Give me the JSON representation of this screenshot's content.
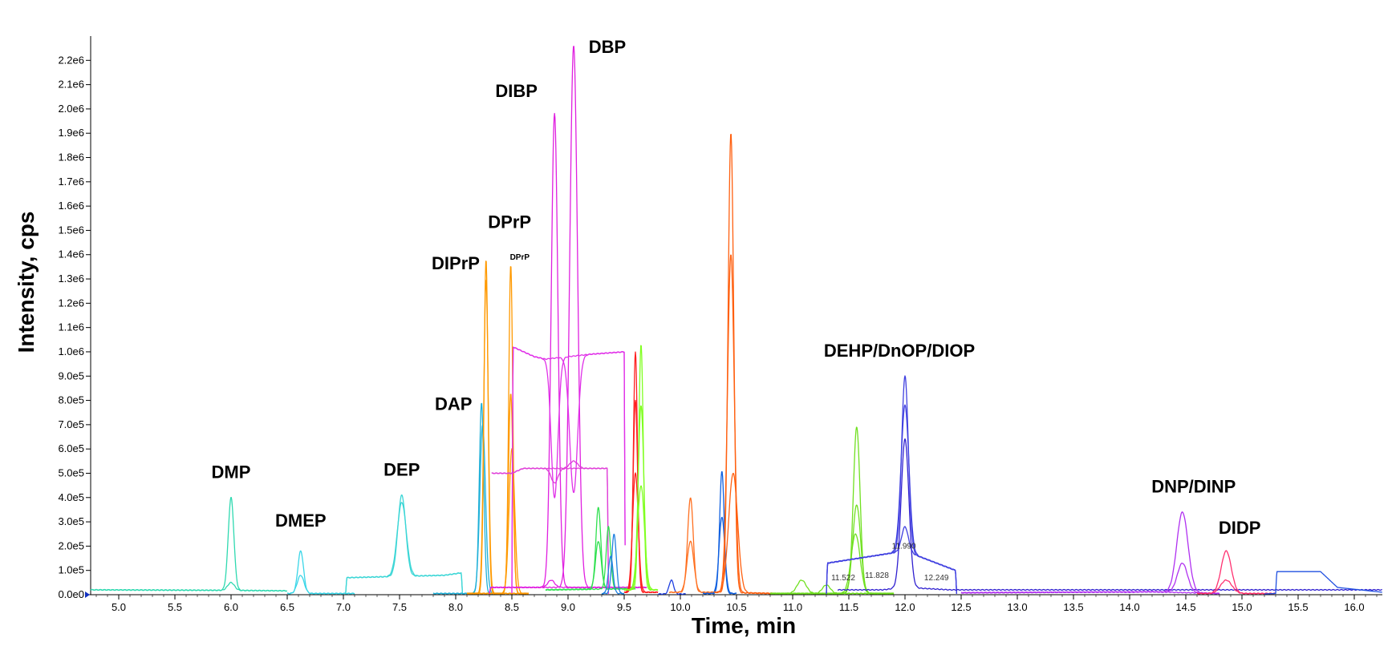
{
  "chart_data": {
    "type": "line",
    "xlabel": "Time, min",
    "ylabel": "Intensity, cps",
    "xlim": [
      4.75,
      16.25
    ],
    "ylim": [
      0,
      2300000
    ],
    "x_ticks": [
      "5.0",
      "5.5",
      "6.0",
      "6.5",
      "7.0",
      "7.5",
      "8.0",
      "8.5",
      "9.0",
      "9.5",
      "10.0",
      "10.5",
      "11.0",
      "11.5",
      "12.0",
      "12.5",
      "13.0",
      "13.5",
      "14.0",
      "14.5",
      "15.0",
      "15.5",
      "16.0"
    ],
    "y_ticks": [
      "0.0e0",
      "1.0e5",
      "2.0e5",
      "3.0e5",
      "4.0e5",
      "5.0e5",
      "6.0e5",
      "7.0e5",
      "8.0e5",
      "9.0e5",
      "1.0e6",
      "1.1e6",
      "1.2e6",
      "1.3e6",
      "1.4e6",
      "1.5e6",
      "1.6e6",
      "1.7e6",
      "1.8e6",
      "1.9e6",
      "2.0e6",
      "2.1e6",
      "2.2e6"
    ],
    "annotations": [
      {
        "text": "DMP",
        "x": 6.0,
        "y": 480000
      },
      {
        "text": "DMEP",
        "x": 6.62,
        "y": 280000
      },
      {
        "text": "DEP",
        "x": 7.52,
        "y": 490000
      },
      {
        "text": "DAP",
        "x": 7.98,
        "y": 760000
      },
      {
        "text": "DIPrP",
        "x": 8.0,
        "y": 1340000
      },
      {
        "text": "DPrP",
        "x": 8.48,
        "y": 1510000
      },
      {
        "text": "DPrP",
        "x": 8.57,
        "y": 1380000,
        "small": true
      },
      {
        "text": "DIBP",
        "x": 8.54,
        "y": 2050000
      },
      {
        "text": "DBP",
        "x": 9.35,
        "y": 2230000
      },
      {
        "text": "DEHP/DnOP/DIOP",
        "x": 11.95,
        "y": 980000
      },
      {
        "text": "DNP/DINP",
        "x": 14.57,
        "y": 420000
      },
      {
        "text": "DIDP",
        "x": 14.98,
        "y": 250000
      }
    ],
    "rt_labels": [
      {
        "text": "11.522",
        "x": 11.45,
        "y": 60000
      },
      {
        "text": "11.828",
        "x": 11.75,
        "y": 70000
      },
      {
        "text": "11.990",
        "x": 11.99,
        "y": 190000
      },
      {
        "text": "12.249",
        "x": 12.28,
        "y": 60000
      }
    ],
    "series": [
      {
        "color": "#2fd9b0",
        "baseline": [
          [
            4.75,
            20000
          ],
          [
            5.95,
            18000
          ],
          [
            6.5,
            16000
          ]
        ],
        "peaks": [
          [
            6.0,
            400000,
            0.025
          ],
          [
            6.0,
            50000,
            0.03
          ]
        ]
      },
      {
        "color": "#3ad6e8",
        "baseline": [
          [
            6.5,
            5000
          ],
          [
            7.1,
            5000
          ]
        ],
        "peaks": [
          [
            6.62,
            180000,
            0.025
          ],
          [
            6.62,
            80000,
            0.03
          ]
        ]
      },
      {
        "color": "#3cd6d6",
        "baseline": [
          [
            7.02,
            5000
          ],
          [
            7.03,
            70000
          ],
          [
            7.9,
            80000
          ],
          [
            8.05,
            90000
          ],
          [
            8.06,
            5000
          ]
        ],
        "peaks": [
          [
            7.52,
            410000,
            0.035
          ],
          [
            7.52,
            380000,
            0.04
          ]
        ]
      },
      {
        "color": "#1fb0d8",
        "baseline": [
          [
            7.8,
            5000
          ],
          [
            8.4,
            5000
          ]
        ],
        "peaks": [
          [
            8.23,
            790000,
            0.02
          ],
          [
            8.24,
            700000,
            0.025
          ]
        ]
      },
      {
        "color": "#ff9900",
        "baseline": [
          [
            8.1,
            5000
          ],
          [
            8.65,
            5000
          ]
        ],
        "peaks": [
          [
            8.27,
            1380000,
            0.018
          ],
          [
            8.27,
            1300000,
            0.02
          ],
          [
            8.49,
            1360000,
            0.018
          ],
          [
            8.49,
            830000,
            0.02
          ],
          [
            8.5,
            600000,
            0.025
          ]
        ]
      },
      {
        "color": "#e020e0",
        "baseline": [
          [
            8.3,
            5000
          ],
          [
            8.31,
            30000
          ],
          [
            9.7,
            30000
          ]
        ],
        "peaks": [
          [
            8.88,
            1980000,
            0.03
          ],
          [
            9.05,
            2260000,
            0.035
          ],
          [
            8.85,
            60000,
            0.03
          ]
        ]
      },
      {
        "color": "#e040d8",
        "baseline": [
          [
            8.32,
            500000
          ],
          [
            8.5,
            500000
          ],
          [
            8.6,
            520000
          ],
          [
            8.8,
            520000
          ],
          [
            9.1,
            520000
          ],
          [
            9.35,
            520000
          ],
          [
            9.36,
            5000
          ]
        ],
        "peaks": [
          [
            8.88,
            460000,
            0.03
          ],
          [
            9.05,
            550000,
            0.035
          ]
        ]
      },
      {
        "color": "#e030e8",
        "baseline": [
          [
            8.5,
            5000
          ],
          [
            8.51,
            1020000
          ],
          [
            8.7,
            980000
          ],
          [
            8.8,
            970000
          ],
          [
            9.2,
            990000
          ],
          [
            9.5,
            1000000
          ],
          [
            9.51,
            5000
          ]
        ],
        "peaks": [
          [
            8.88,
            400000,
            0.03
          ],
          [
            9.05,
            420000,
            0.035
          ]
        ]
      },
      {
        "color": "#30e050",
        "baseline": [
          [
            8.8,
            20000
          ],
          [
            9.6,
            25000
          ]
        ],
        "peaks": [
          [
            9.27,
            360000,
            0.022
          ],
          [
            9.27,
            220000,
            0.025
          ],
          [
            9.36,
            280000,
            0.02
          ]
        ]
      },
      {
        "color": "#2080e0",
        "baseline": [
          [
            9.3,
            5000
          ],
          [
            9.5,
            5000
          ]
        ],
        "peaks": [
          [
            9.41,
            250000,
            0.02
          ],
          [
            9.38,
            160000,
            0.02
          ]
        ]
      },
      {
        "color": "#ff2020",
        "baseline": [
          [
            9.5,
            10000
          ],
          [
            9.8,
            10000
          ]
        ],
        "peaks": [
          [
            9.6,
            1000000,
            0.018
          ],
          [
            9.6,
            800000,
            0.02
          ],
          [
            9.6,
            500000,
            0.025
          ]
        ]
      },
      {
        "color": "#80ff20",
        "baseline": [
          [
            9.5,
            20000
          ],
          [
            9.8,
            20000
          ]
        ],
        "peaks": [
          [
            9.65,
            1030000,
            0.02
          ],
          [
            9.65,
            780000,
            0.025
          ],
          [
            9.65,
            450000,
            0.03
          ]
        ]
      },
      {
        "color": "#2040e0",
        "baseline": [
          [
            9.8,
            3000
          ],
          [
            10.05,
            3000
          ]
        ],
        "peaks": [
          [
            9.92,
            60000,
            0.02
          ]
        ]
      },
      {
        "color": "#ff7020",
        "baseline": [
          [
            9.9,
            10000
          ],
          [
            10.3,
            10000
          ]
        ],
        "peaks": [
          [
            10.09,
            400000,
            0.025
          ],
          [
            10.09,
            220000,
            0.03
          ]
        ]
      },
      {
        "color": "#1060e0",
        "baseline": [
          [
            10.2,
            5000
          ],
          [
            10.5,
            5000
          ]
        ],
        "peaks": [
          [
            10.37,
            510000,
            0.02
          ],
          [
            10.37,
            320000,
            0.025
          ]
        ]
      },
      {
        "color": "#ff6010",
        "baseline": [
          [
            10.3,
            10000
          ],
          [
            10.85,
            5000
          ]
        ],
        "peaks": [
          [
            10.45,
            1900000,
            0.025
          ],
          [
            10.45,
            1400000,
            0.03
          ],
          [
            10.47,
            500000,
            0.04
          ]
        ]
      },
      {
        "color": "#70e020",
        "baseline": [
          [
            10.8,
            5000
          ],
          [
            11.9,
            5000
          ]
        ],
        "peaks": [
          [
            11.08,
            60000,
            0.04
          ],
          [
            11.3,
            40000,
            0.035
          ],
          [
            11.57,
            690000,
            0.03
          ],
          [
            11.57,
            370000,
            0.035
          ],
          [
            11.56,
            250000,
            0.04
          ]
        ]
      },
      {
        "color": "#4040e0",
        "baseline": [
          [
            11.3,
            5000
          ],
          [
            11.31,
            130000
          ],
          [
            12.0,
            180000
          ],
          [
            12.45,
            100000
          ],
          [
            12.46,
            5000
          ]
        ],
        "peaks": [
          [
            12.0,
            900000,
            0.03
          ],
          [
            12.0,
            780000,
            0.035
          ],
          [
            12.0,
            280000,
            0.03
          ]
        ]
      },
      {
        "color": "#3020d0",
        "baseline": [
          [
            11.4,
            20000
          ],
          [
            11.8,
            20000
          ],
          [
            12.0,
            30000
          ],
          [
            12.4,
            20000
          ],
          [
            16.25,
            20000
          ]
        ],
        "peaks": [
          [
            12.0,
            640000,
            0.035
          ]
        ]
      },
      {
        "color": "#b030f0",
        "baseline": [
          [
            12.5,
            8000
          ],
          [
            14.2,
            12000
          ],
          [
            14.8,
            5000
          ]
        ],
        "peaks": [
          [
            14.47,
            340000,
            0.05
          ],
          [
            14.47,
            130000,
            0.045
          ],
          [
            14.0,
            10000,
            0.05
          ]
        ]
      },
      {
        "color": "#ff3070",
        "baseline": [
          [
            14.6,
            5000
          ],
          [
            15.3,
            5000
          ]
        ],
        "peaks": [
          [
            14.86,
            180000,
            0.045
          ],
          [
            14.86,
            60000,
            0.05
          ]
        ]
      },
      {
        "color": "#2050e0",
        "baseline": [
          [
            15.2,
            3000
          ],
          [
            15.3,
            5000
          ],
          [
            15.31,
            95000
          ],
          [
            15.7,
            95000
          ],
          [
            15.85,
            30000
          ],
          [
            16.25,
            10000
          ]
        ],
        "peaks": []
      }
    ]
  }
}
